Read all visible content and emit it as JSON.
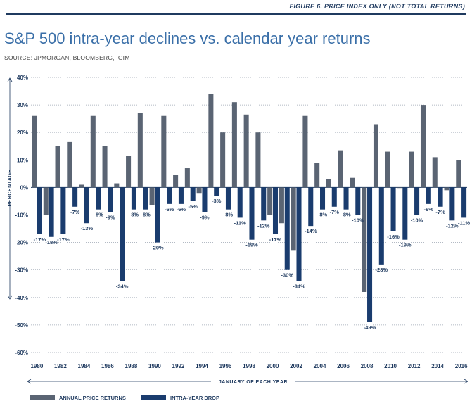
{
  "figure_label": "FIGURE 6. PRICE INDEX ONLY (NOT TOTAL RETURNS)",
  "chart_data": {
    "type": "bar",
    "title": "S&P 500 intra-year declines vs. calendar year returns",
    "subtitle": "SOURCE: JPMORGAN, BLOOMBERG, IGIM",
    "xlabel": "JANUARY OF EACH YEAR",
    "ylabel": "PERCENTAGE",
    "ylim": [
      -60,
      40
    ],
    "yticks": [
      "40%",
      "30%",
      "20%",
      "10%",
      "0%",
      "-10%",
      "-20%",
      "-30%",
      "-40%",
      "-50%",
      "-60%"
    ],
    "ytick_values": [
      40,
      30,
      20,
      10,
      0,
      -10,
      -20,
      -30,
      -40,
      -50,
      -60
    ],
    "categories": [
      1980,
      1981,
      1982,
      1983,
      1984,
      1985,
      1986,
      1987,
      1988,
      1989,
      1990,
      1991,
      1992,
      1993,
      1994,
      1995,
      1996,
      1997,
      1998,
      1999,
      2000,
      2001,
      2002,
      2003,
      2004,
      2005,
      2006,
      2007,
      2008,
      2009,
      2010,
      2011,
      2012,
      2013,
      2014,
      2015,
      2016
    ],
    "xtick_labels": [
      "1980",
      "1982",
      "1984",
      "1986",
      "1988",
      "1990",
      "1992",
      "1994",
      "1996",
      "1998",
      "2000",
      "2002",
      "2004",
      "2006",
      "2008",
      "2010",
      "2012",
      "2014",
      "2016"
    ],
    "xtick_values": [
      1980,
      1982,
      1984,
      1986,
      1988,
      1990,
      1992,
      1994,
      1996,
      1998,
      2000,
      2002,
      2004,
      2006,
      2008,
      2010,
      2012,
      2014,
      2016
    ],
    "series": [
      {
        "name": "ANNUAL PRICE RETURNS",
        "color": "#5a6473",
        "values": [
          26,
          -10,
          15,
          16.5,
          1,
          26,
          15,
          1.5,
          11.5,
          27,
          -6.5,
          26,
          4.5,
          7,
          -2,
          34,
          20,
          31,
          26.5,
          20,
          -10,
          -13,
          -23,
          26,
          9,
          3,
          13.5,
          3.5,
          -38,
          23,
          13,
          0,
          13,
          30,
          11,
          -1,
          10
        ]
      },
      {
        "name": "INTRA-YEAR DROP",
        "color": "#1a3c6e",
        "values": [
          -17,
          -18,
          -17,
          -7,
          -13,
          -8,
          -9,
          -34,
          -8,
          -8,
          -20,
          -6,
          -6,
          -5,
          -9,
          -3,
          -8,
          -11,
          -19,
          -12,
          -17,
          -30,
          -34,
          -14,
          -8,
          -7,
          -8,
          -10,
          -49,
          -28,
          -16,
          -19,
          -10,
          -6,
          -7,
          -12,
          -11
        ],
        "labels": [
          "-17%",
          "-18%",
          "-17%",
          "-7%",
          "-13%",
          "-8%",
          "-9%",
          "-34%",
          "-8%",
          "-8%",
          "-20%",
          "-6%",
          "-6%",
          "-5%",
          "-9%",
          "-3%",
          "-8%",
          "-11%",
          "-19%",
          "-12%",
          "-17%",
          "-30%",
          "-34%",
          "-14%",
          "-8%",
          "-7%",
          "-8%",
          "-10%",
          "-49%",
          "-28%",
          "-16%",
          "-19%",
          "-10%",
          "-6%",
          "-7%",
          "-12%",
          "-11%"
        ]
      }
    ],
    "grid": true,
    "legend_position": "bottom-left"
  }
}
